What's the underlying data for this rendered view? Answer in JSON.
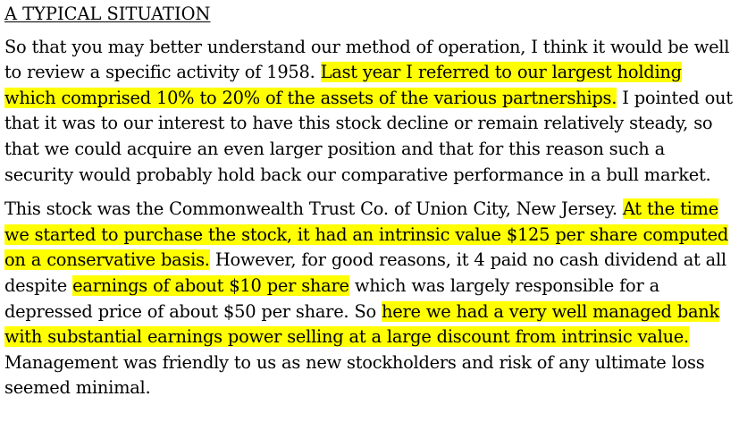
{
  "colors": {
    "highlight": "#ffff00",
    "text": "#000000",
    "background": "#ffffff"
  },
  "heading": "A TYPICAL SITUATION",
  "paragraph1": {
    "s1": "So that you may better understand our method of operation, I think it would be well to review a specific activity of 1958.",
    "s2_highlight": "Last year I referred to our largest holding which comprised 10% to 20% of the assets of the various partnerships.",
    "s3": "I pointed out that it was to our interest to have this stock decline or remain relatively steady, so that we could acquire an even larger position and that for this reason such a security would probably hold back our comparative performance in a bull market."
  },
  "paragraph2": {
    "s1": "This stock was the Commonwealth Trust Co. of Union City, New Jersey.",
    "s2_highlight": "At the time we started to purchase the stock, it had an intrinsic value $125 per share computed on a conservative basis.",
    "s3a": "However, for good reasons, it 4 paid no cash dividend at all despite",
    "s3_highlight": "earnings of about $10 per share",
    "s3b": "which was largely responsible for a depressed price of about $50 per share. So",
    "s4_highlight": "here we had a very well managed bank with substantial earnings power selling at a large discount from intrinsic value.",
    "s5": "Management was friendly to us as new stockholders and risk of any ultimate loss seemed minimal."
  }
}
